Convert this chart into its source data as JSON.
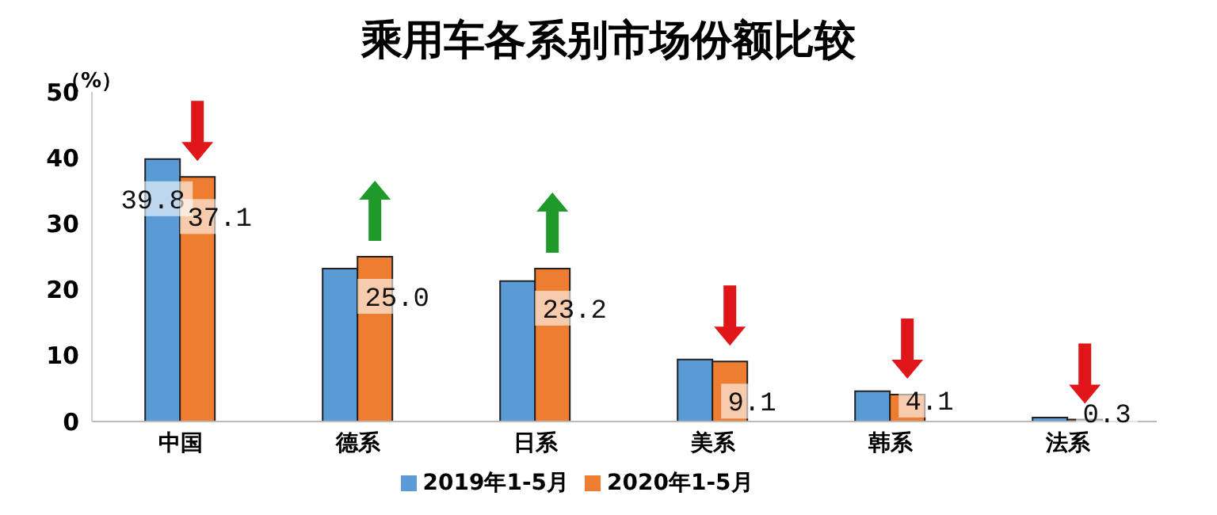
{
  "chart_data": {
    "type": "bar",
    "title": "乘用车各系别市场份额比较",
    "ylabel": "（%）",
    "categories": [
      "中国",
      "德系",
      "日系",
      "美系",
      "韩系",
      "法系"
    ],
    "series": [
      {
        "name": "2019年1-5月",
        "color": "#5b9bd5",
        "values": [
          39.8,
          23.2,
          21.3,
          9.4,
          4.6,
          0.6
        ],
        "value_labels": [
          "39.8",
          null,
          null,
          null,
          null,
          null
        ]
      },
      {
        "name": "2020年1-5月",
        "color": "#ed7d31",
        "values": [
          37.1,
          25.0,
          23.2,
          9.1,
          4.1,
          0.3
        ],
        "value_labels": [
          "37.1",
          "25.0",
          "23.2",
          "9.1",
          "4.1",
          "0.3"
        ]
      }
    ],
    "ylim": [
      0,
      50
    ],
    "yticks": [
      0,
      10,
      20,
      30,
      40,
      50
    ],
    "grid": false,
    "legend": "bottom"
  }
}
